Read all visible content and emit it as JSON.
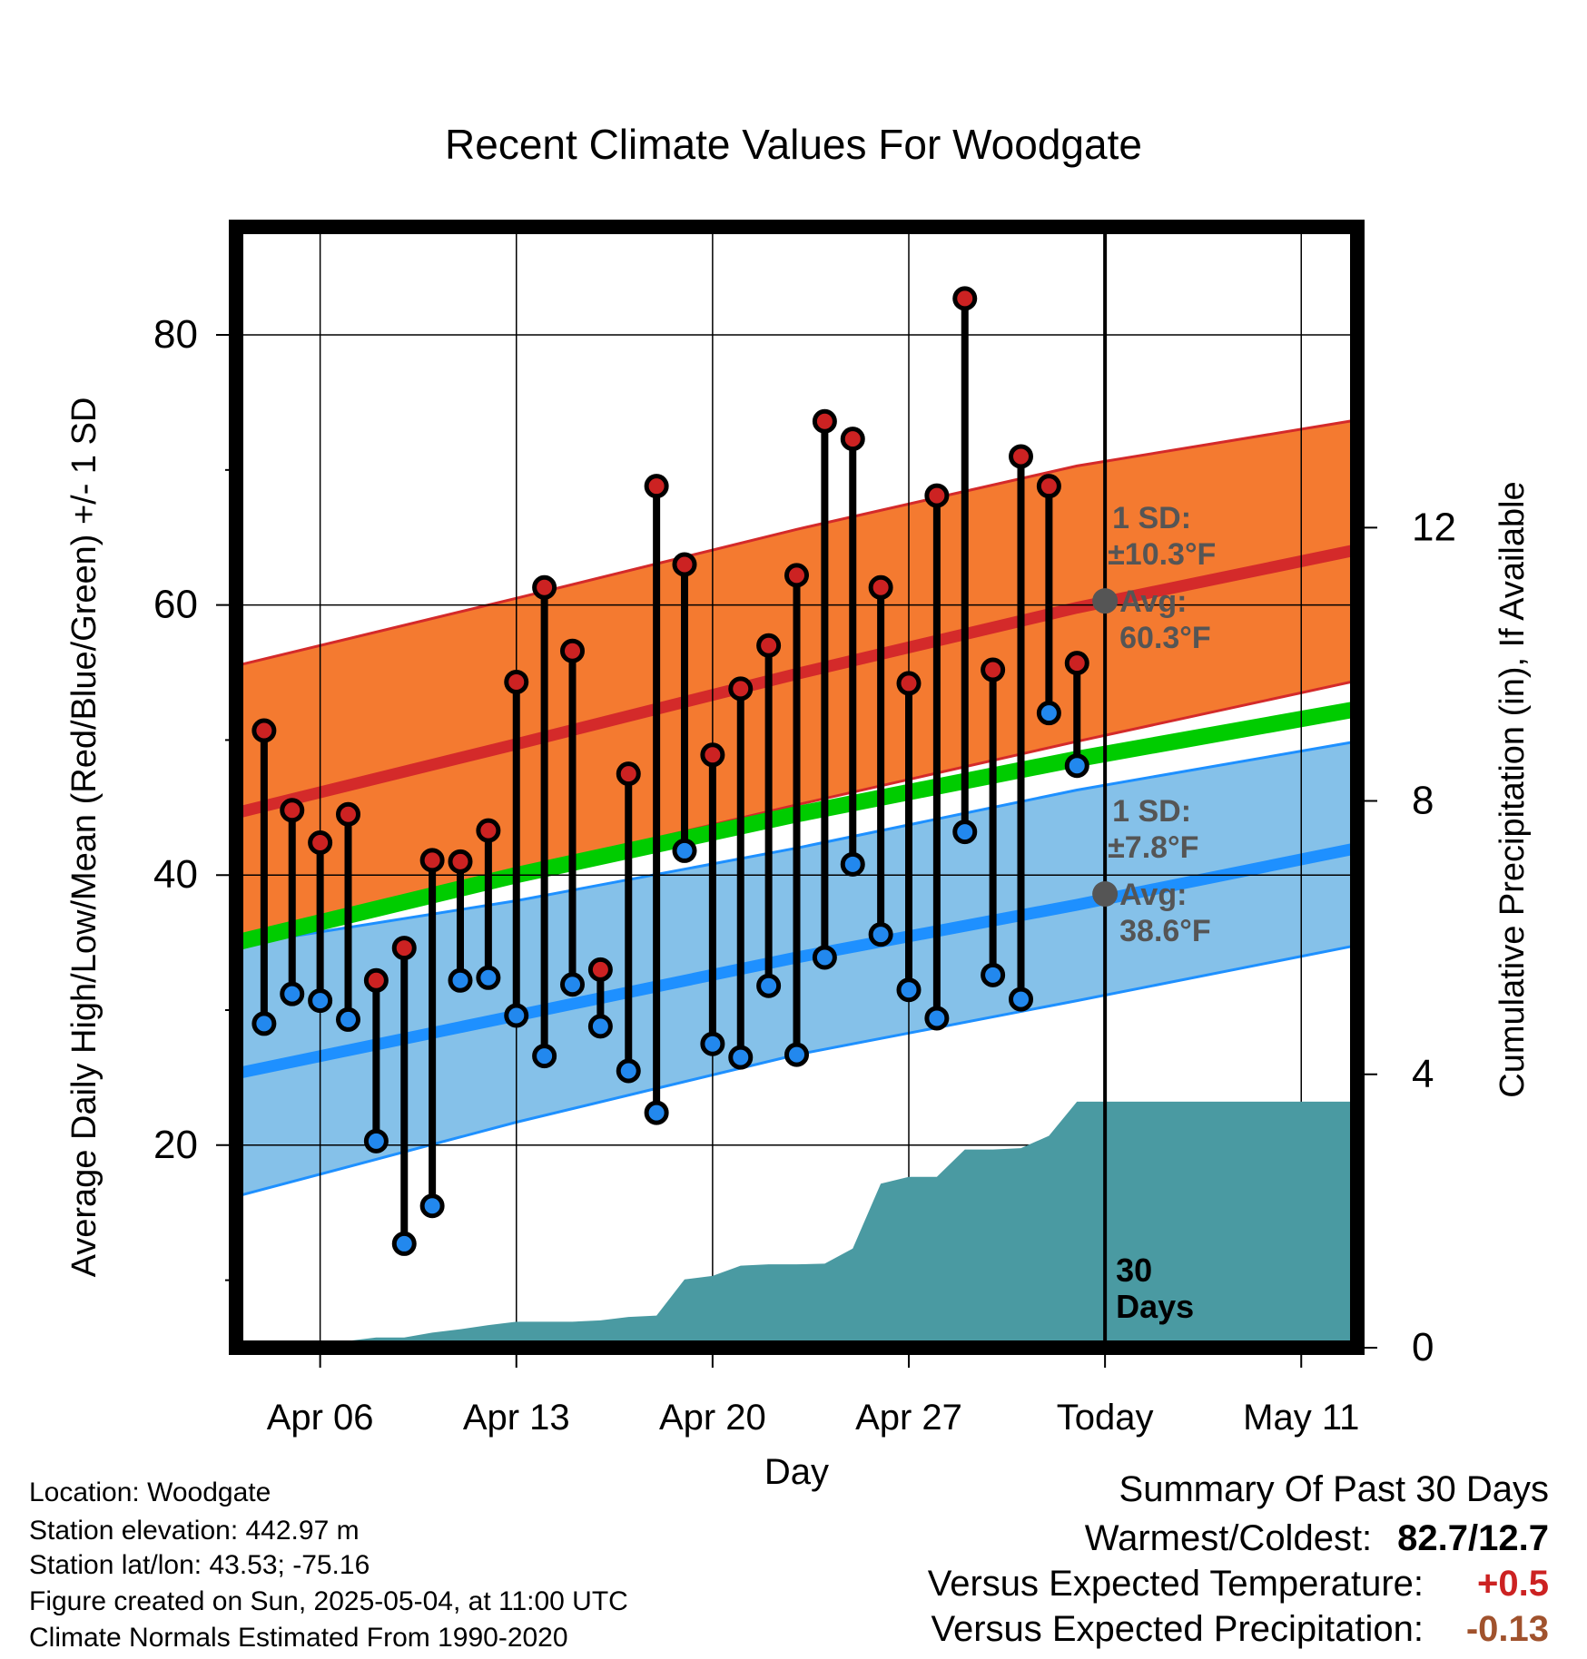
{
  "chart_data": {
    "type": "line",
    "title": "Recent Climate Values For Woodgate",
    "xlabel": "Day",
    "ylabel": "Average Daily High/Low/Mean (Red/Blue/Green) +/- 1 SD",
    "y2label": "Cumulative Precipitation (in), If Available",
    "x_ticks": [
      {
        "date": "2025-04-06",
        "label": "Apr 06"
      },
      {
        "date": "2025-04-13",
        "label": "Apr 13"
      },
      {
        "date": "2025-04-20",
        "label": "Apr 20"
      },
      {
        "date": "2025-04-27",
        "label": "Apr 27"
      },
      {
        "date": "2025-05-04",
        "label": "Today"
      },
      {
        "date": "2025-05-11",
        "label": "May 11"
      }
    ],
    "x_range": [
      "2025-04-03",
      "2025-05-13"
    ],
    "ylim": [
      5,
      88
    ],
    "y_ticks": [
      20,
      40,
      60,
      80
    ],
    "y2lim": [
      0,
      16.4
    ],
    "y2_ticks": [
      0,
      4,
      8,
      12
    ],
    "grid": true,
    "daily_dates": [
      "2025-04-04",
      "2025-04-05",
      "2025-04-06",
      "2025-04-07",
      "2025-04-08",
      "2025-04-09",
      "2025-04-10",
      "2025-04-11",
      "2025-04-12",
      "2025-04-13",
      "2025-04-14",
      "2025-04-15",
      "2025-04-16",
      "2025-04-17",
      "2025-04-18",
      "2025-04-19",
      "2025-04-20",
      "2025-04-21",
      "2025-04-22",
      "2025-04-23",
      "2025-04-24",
      "2025-04-25",
      "2025-04-26",
      "2025-04-27",
      "2025-04-28",
      "2025-04-29",
      "2025-04-30",
      "2025-05-01",
      "2025-05-02",
      "2025-05-03"
    ],
    "series": [
      {
        "name": "High",
        "color": "#cc2222",
        "values": [
          50.7,
          44.8,
          42.4,
          44.5,
          32.2,
          34.6,
          41.1,
          41.0,
          43.3,
          54.3,
          61.3,
          56.6,
          33.0,
          47.5,
          68.8,
          63.0,
          48.9,
          53.8,
          57.0,
          62.2,
          73.6,
          72.3,
          61.3,
          54.2,
          68.1,
          82.7,
          55.2,
          71.0,
          68.8,
          55.7
        ]
      },
      {
        "name": "Low",
        "color": "#2288ee",
        "values": [
          29.0,
          31.2,
          30.7,
          29.3,
          20.3,
          12.7,
          15.5,
          32.2,
          32.4,
          29.6,
          26.6,
          31.9,
          28.8,
          25.5,
          22.4,
          41.8,
          27.5,
          26.5,
          31.8,
          26.7,
          33.9,
          40.8,
          35.6,
          31.5,
          29.4,
          43.2,
          32.6,
          30.8,
          52.0,
          48.1
        ]
      }
    ],
    "normals": {
      "dates": [
        "2025-04-03",
        "2025-04-13",
        "2025-04-23",
        "2025-05-03",
        "2025-05-13"
      ],
      "high_mean": [
        44.6,
        49.7,
        54.9,
        59.8,
        64.1
      ],
      "high_upper": [
        55.5,
        60.5,
        65.6,
        70.3,
        73.7
      ],
      "high_lower": [
        35.2,
        40.3,
        45.2,
        49.9,
        54.4
      ],
      "low_mean": [
        25.3,
        29.6,
        33.9,
        37.8,
        42.0
      ],
      "low_upper": [
        34.8,
        38.1,
        42.0,
        46.3,
        49.9
      ],
      "low_lower": [
        16.2,
        21.7,
        26.7,
        30.7,
        34.8
      ],
      "mean_mean": [
        35.0,
        40.0,
        44.5,
        48.6,
        52.3
      ],
      "colors": {
        "high_band": "#f47a30",
        "high_line": "#d42a2a",
        "low_band": "#85c1e9",
        "low_line": "#1e90ff",
        "mean_line": "#00cc00"
      }
    },
    "precipitation": {
      "color": "#4a9aa2",
      "dates": [
        "2025-04-03",
        "2025-04-04",
        "2025-04-05",
        "2025-04-06",
        "2025-04-07",
        "2025-04-08",
        "2025-04-09",
        "2025-04-10",
        "2025-04-11",
        "2025-04-12",
        "2025-04-13",
        "2025-04-14",
        "2025-04-15",
        "2025-04-16",
        "2025-04-17",
        "2025-04-18",
        "2025-04-19",
        "2025-04-20",
        "2025-04-21",
        "2025-04-22",
        "2025-04-23",
        "2025-04-24",
        "2025-04-25",
        "2025-04-26",
        "2025-04-27",
        "2025-04-28",
        "2025-04-29",
        "2025-04-30",
        "2025-05-01",
        "2025-05-02",
        "2025-05-03",
        "2025-05-04",
        "2025-05-13"
      ],
      "values": [
        0,
        0,
        0.05,
        0.08,
        0.1,
        0.15,
        0.15,
        0.22,
        0.27,
        0.33,
        0.38,
        0.38,
        0.38,
        0.4,
        0.45,
        0.47,
        1.0,
        1.05,
        1.2,
        1.22,
        1.22,
        1.23,
        1.45,
        2.4,
        2.5,
        2.5,
        2.9,
        2.9,
        2.92,
        3.1,
        3.6,
        3.6,
        3.6
      ]
    },
    "annotations": {
      "high_sd": {
        "lines": [
          "1 SD:",
          "±10.3°F",
          "Avg:",
          "60.3°F"
        ],
        "value": 60.3
      },
      "low_sd": {
        "lines": [
          "1 SD:",
          "±7.8°F",
          "Avg:",
          "38.6°F"
        ],
        "value": 38.6
      },
      "today_marker": {
        "date": "2025-05-04",
        "lines": [
          "30",
          "Days"
        ]
      },
      "text_color": "#555555"
    }
  },
  "info": {
    "location": "Location: Woodgate",
    "elevation": "Station elevation: 442.97 m",
    "latlon": "Station lat/lon: 43.53; -75.16",
    "created": "Figure created on Sun, 2025-05-04, at 11:00 UTC",
    "normals": "Climate Normals Estimated From 1990-2020"
  },
  "summary": {
    "title": "Summary Of Past 30 Days",
    "warm_cold_label": "Warmest/Coldest:",
    "warm_cold_value": "82.7/12.7",
    "temp_label": "Versus Expected Temperature:",
    "temp_value": "+0.5",
    "temp_color": "#cc2222",
    "precip_label": "Versus Expected Precipitation:",
    "precip_value": "-0.13",
    "precip_color": "#a0522d"
  }
}
